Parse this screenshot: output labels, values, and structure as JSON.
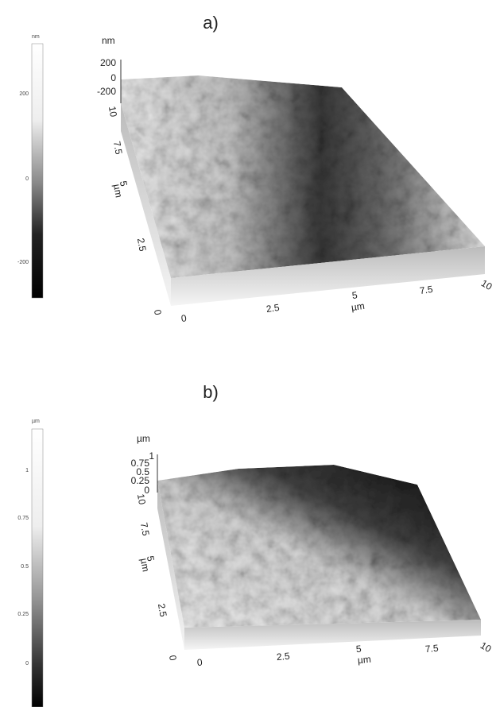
{
  "panels": [
    {
      "label": "a)",
      "colorbar": {
        "unit": "nm",
        "ticks": [
          "200",
          "0",
          "-200"
        ]
      },
      "z_axis": {
        "unit": "nm",
        "ticks": [
          "200",
          "0",
          "-200"
        ]
      },
      "y_axis": {
        "unit": "µm",
        "ticks": [
          "10",
          "7.5",
          "5",
          "2.5",
          "0"
        ]
      },
      "x_axis": {
        "unit": "µm",
        "ticks": [
          "0",
          "2.5",
          "5",
          "7.5",
          "10"
        ]
      }
    },
    {
      "label": "b)",
      "colorbar": {
        "unit": "µm",
        "ticks": [
          "1",
          "0.75",
          "0.5",
          "0.25",
          "0"
        ]
      },
      "z_axis": {
        "unit": "µm",
        "ticks": [
          "1",
          "0.75",
          "0.5",
          "0.25",
          "0"
        ]
      },
      "y_axis": {
        "unit": "µm",
        "ticks": [
          "10",
          "7.5",
          "5",
          "2.5",
          "0"
        ]
      },
      "x_axis": {
        "unit": "µm",
        "ticks": [
          "0",
          "2.5",
          "5",
          "7.5",
          "10"
        ]
      }
    }
  ]
}
